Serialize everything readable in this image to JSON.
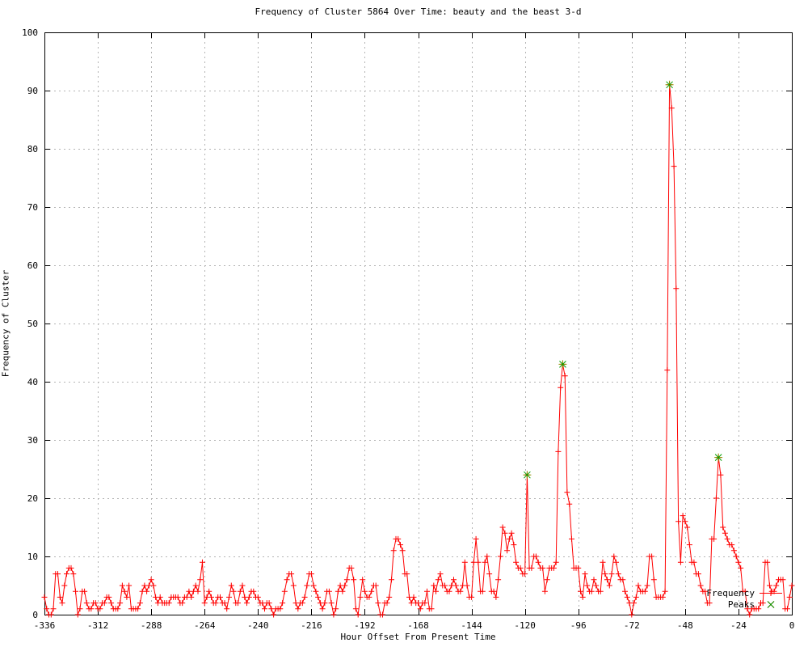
{
  "title": "Frequency of Cluster 5864 Over Time: beauty and the beast 3-d",
  "xlabel": "Hour Offset From Present Time",
  "ylabel": "Frequency of Cluster",
  "legend": {
    "frequency_label": "Frequency",
    "peaks_label": "Peaks"
  },
  "colors": {
    "line": "#ff0000",
    "peak_cross": "#00a000",
    "peak_bar": "#8f8f00",
    "grid": "#b4b4b4",
    "axis": "#000000",
    "background": "#ffffff"
  },
  "axes": {
    "x_ticks": [
      -336,
      -312,
      -288,
      -264,
      -240,
      -216,
      -192,
      -168,
      -144,
      -120,
      -96,
      -72,
      -48,
      -24,
      0
    ],
    "y_ticks": [
      0,
      10,
      20,
      30,
      40,
      50,
      60,
      70,
      80,
      90,
      100
    ]
  },
  "chart_data": {
    "type": "line",
    "title": "Frequency of Cluster 5864 Over Time: beauty and the beast 3-d",
    "xlabel": "Hour Offset From Present Time",
    "ylabel": "Frequency of Cluster",
    "xlim": [
      -336,
      0
    ],
    "ylim": [
      0,
      100
    ],
    "grid": true,
    "legend_position": "bottom-right-inside",
    "x_start": -336,
    "x_step": 1,
    "series": [
      {
        "name": "Frequency",
        "marker": "plus",
        "color": "#ff0000",
        "values": [
          3,
          1,
          0,
          0,
          1,
          7,
          7,
          3,
          2,
          5,
          7,
          8,
          8,
          7,
          4,
          0,
          1,
          4,
          4,
          2,
          1,
          1,
          2,
          2,
          1,
          1,
          2,
          2,
          3,
          3,
          2,
          1,
          1,
          1,
          2,
          5,
          4,
          3,
          5,
          1,
          1,
          1,
          1,
          2,
          4,
          5,
          4,
          5,
          6,
          5,
          3,
          2,
          3,
          2,
          2,
          2,
          2,
          3,
          3,
          3,
          3,
          2,
          2,
          3,
          3,
          4,
          3,
          4,
          5,
          4,
          6,
          9,
          2,
          3,
          4,
          3,
          2,
          2,
          3,
          3,
          2,
          2,
          1,
          3,
          5,
          4,
          2,
          2,
          4,
          5,
          3,
          2,
          3,
          4,
          4,
          3,
          3,
          2,
          2,
          1,
          2,
          2,
          1,
          0,
          1,
          1,
          1,
          2,
          4,
          6,
          7,
          7,
          5,
          2,
          1,
          2,
          2,
          3,
          5,
          7,
          7,
          5,
          4,
          3,
          2,
          1,
          2,
          4,
          4,
          2,
          0,
          1,
          4,
          5,
          4,
          5,
          6,
          8,
          8,
          6,
          1,
          0,
          3,
          6,
          4,
          3,
          3,
          4,
          5,
          5,
          2,
          0,
          0,
          2,
          2,
          3,
          6,
          11,
          13,
          13,
          12,
          11,
          7,
          7,
          3,
          2,
          3,
          2,
          2,
          1,
          2,
          2,
          4,
          1,
          1,
          5,
          4,
          6,
          7,
          5,
          5,
          4,
          4,
          5,
          6,
          5,
          4,
          4,
          5,
          9,
          5,
          3,
          3,
          9,
          13,
          9,
          4,
          4,
          9,
          10,
          7,
          4,
          4,
          3,
          6,
          10,
          15,
          14,
          11,
          13,
          14,
          12,
          9,
          8,
          8,
          7,
          7,
          24,
          8,
          8,
          10,
          10,
          9,
          8,
          8,
          4,
          6,
          8,
          8,
          8,
          9,
          28,
          39,
          43,
          41,
          21,
          19,
          13,
          8,
          8,
          8,
          4,
          3,
          7,
          5,
          4,
          4,
          6,
          5,
          4,
          4,
          9,
          7,
          6,
          5,
          7,
          10,
          9,
          7,
          6,
          6,
          4,
          3,
          2,
          0,
          2,
          3,
          5,
          4,
          4,
          4,
          5,
          10,
          10,
          6,
          3,
          3,
          3,
          3,
          4,
          42,
          91,
          87,
          77,
          56,
          16,
          9,
          17,
          16,
          15,
          12,
          9,
          9,
          7,
          7,
          5,
          4,
          4,
          2,
          2,
          13,
          13,
          20,
          27,
          24,
          15,
          14,
          13,
          12,
          12,
          11,
          10,
          9,
          8,
          4,
          4,
          1,
          0,
          1,
          1,
          1,
          1,
          2,
          2,
          9,
          9,
          5,
          4,
          4,
          5,
          6,
          6,
          6,
          1,
          1,
          3,
          5
        ]
      },
      {
        "name": "Peaks",
        "marker": "asterisk",
        "color": "#00a000",
        "points": [
          {
            "x": -119,
            "y": 24
          },
          {
            "x": -103,
            "y": 43
          },
          {
            "x": -55,
            "y": 91
          },
          {
            "x": -33,
            "y": 27
          }
        ]
      }
    ]
  }
}
